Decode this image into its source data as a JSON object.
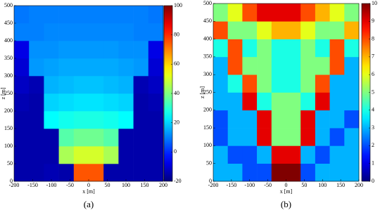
{
  "chart_data": [
    {
      "type": "heatmap",
      "colormap": "jet",
      "caption": "(a)",
      "xlabel": "x [m]",
      "ylabel": "z [m]",
      "x": [
        -180,
        -140,
        -100,
        -60,
        -20,
        20,
        60,
        100,
        140,
        180
      ],
      "z": [
        25,
        75,
        125,
        175,
        225,
        275,
        325,
        375,
        425,
        475
      ],
      "values": [
        [
          -15,
          -15,
          -14,
          -15,
          75,
          75,
          -15,
          -15,
          -15,
          -15
        ],
        [
          -15,
          -15,
          -15,
          45,
          50,
          50,
          45,
          -15,
          -15,
          -15
        ],
        [
          -15,
          -15,
          -15,
          35,
          38,
          38,
          35,
          -15,
          -15,
          -15
        ],
        [
          -15,
          -15,
          25,
          27,
          28,
          28,
          27,
          25,
          -15,
          -15
        ],
        [
          -14,
          -15,
          20,
          21,
          22,
          22,
          21,
          20,
          -15,
          -14
        ],
        [
          -12,
          -14,
          16,
          17,
          18,
          18,
          17,
          16,
          -14,
          -12
        ],
        [
          -10,
          13,
          14,
          15,
          15,
          15,
          15,
          14,
          13,
          -10
        ],
        [
          -8,
          12,
          12,
          13,
          13,
          13,
          13,
          12,
          12,
          -8
        ],
        [
          10,
          10,
          11,
          11,
          11,
          11,
          11,
          11,
          10,
          10
        ],
        [
          9,
          10,
          10,
          10,
          10,
          10,
          10,
          10,
          10,
          9
        ]
      ],
      "xlim": [
        -200,
        200
      ],
      "ylim": [
        0,
        500
      ],
      "xticks": [
        -200,
        -150,
        -100,
        -50,
        0,
        50,
        100,
        150,
        200
      ],
      "yticks": [
        0,
        50,
        100,
        150,
        200,
        250,
        300,
        350,
        400,
        450,
        500
      ],
      "clim": [
        -20,
        100
      ],
      "cticks": [
        -20,
        0,
        20,
        40,
        60,
        80,
        100
      ]
    },
    {
      "type": "heatmap",
      "colormap": "jet",
      "caption": "(b)",
      "xlabel": "x [m]",
      "ylabel": "z [m]",
      "x": [
        -180,
        -140,
        -100,
        -60,
        -20,
        20,
        60,
        100,
        140,
        180
      ],
      "z": [
        25,
        75,
        125,
        175,
        225,
        275,
        325,
        375,
        425,
        475
      ],
      "values": [
        [
          3,
          3,
          2,
          2,
          10,
          10,
          2,
          3,
          3,
          3
        ],
        [
          3,
          2,
          2,
          3,
          9,
          9,
          3,
          2,
          3,
          3
        ],
        [
          2,
          3,
          3,
          9,
          5,
          5,
          9,
          3,
          2,
          3
        ],
        [
          2,
          3,
          3,
          9,
          5,
          5,
          9,
          3,
          3,
          2
        ],
        [
          3,
          3,
          9,
          4,
          5,
          5,
          4,
          9,
          3,
          3
        ],
        [
          3,
          4,
          8,
          5,
          4,
          4,
          5,
          8,
          3,
          3
        ],
        [
          3,
          8,
          5,
          5,
          4,
          4,
          5,
          5,
          8,
          3
        ],
        [
          4,
          8,
          4,
          5,
          4,
          4,
          5,
          4,
          8,
          4
        ],
        [
          8,
          5,
          5,
          6,
          7,
          7,
          6,
          5,
          5,
          7
        ],
        [
          5,
          6,
          8,
          9,
          9,
          9,
          8,
          7,
          6,
          5
        ]
      ],
      "xlim": [
        -200,
        200
      ],
      "ylim": [
        0,
        500
      ],
      "xticks": [
        -200,
        -150,
        -100,
        -50,
        0,
        50,
        100,
        150,
        200
      ],
      "yticks": [
        0,
        50,
        100,
        150,
        200,
        250,
        300,
        350,
        400,
        450,
        500
      ],
      "clim": [
        0,
        10
      ],
      "cticks": [
        0,
        1,
        2,
        3,
        4,
        5,
        6,
        7,
        8,
        9,
        10
      ]
    }
  ]
}
